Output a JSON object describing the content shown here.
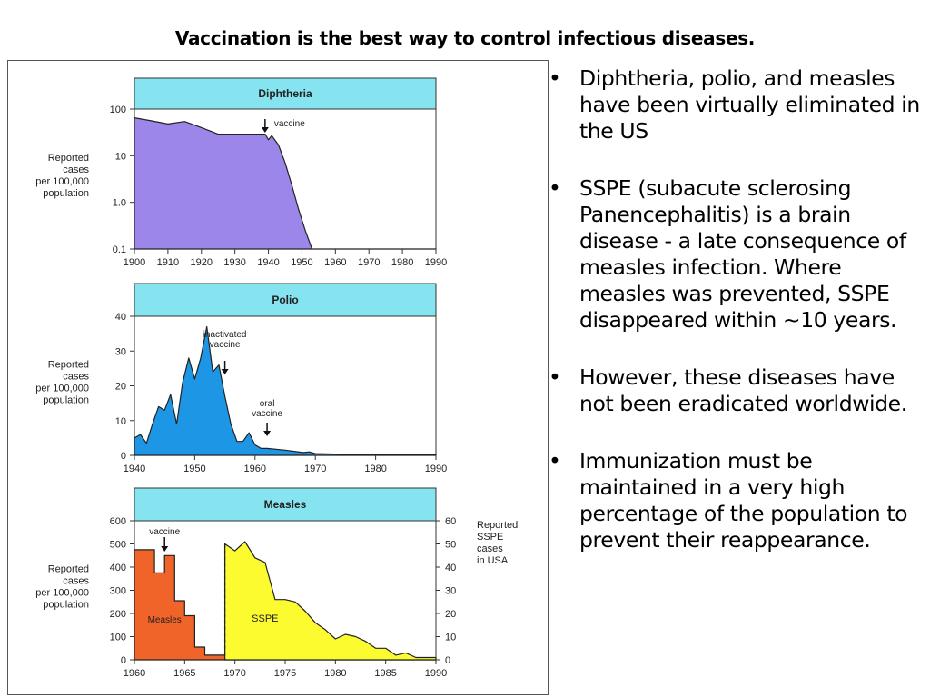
{
  "slide": {
    "title": "Vaccination is the best way to control infectious diseases.",
    "bullet_char": "•",
    "bullets": [
      "Diphtheria, polio, and measles have been virtually eliminated in the US",
      "SSPE (subacute sclerosing Panencephalitis) is a brain disease - a late  consequence of measles infection. Where measles was prevented, SSPE disappeared within ~10 years.",
      "However, these diseases have not been eradicated worldwide.",
      "Immunization must be maintained in a very high percentage of the population to prevent their reappearance."
    ]
  },
  "colors": {
    "header_fill": "#86e4f1",
    "diphtheria_fill": "#9d86ea",
    "polio_fill": "#1e96e6",
    "measles_fill": "#f0642a",
    "sspe_fill": "#fbfb30"
  },
  "chart_data": [
    {
      "type": "area",
      "title": "Diphtheria",
      "ylabel": [
        "Reported",
        "cases",
        "per 100,000",
        "population"
      ],
      "yscale": "log",
      "ylim": [
        0.1,
        100
      ],
      "yticks": [
        100,
        10,
        1.0,
        0.1
      ],
      "ytick_labels": [
        "100",
        "10",
        "1.0",
        "0.1"
      ],
      "xlim": [
        1900,
        1990
      ],
      "xticks": [
        1900,
        1910,
        1920,
        1930,
        1940,
        1950,
        1960,
        1970,
        1980,
        1990
      ],
      "series": [
        {
          "x": [
            1900,
            1905,
            1910,
            1915,
            1920,
            1925,
            1930,
            1935,
            1939,
            1940,
            1941,
            1943,
            1945,
            1947,
            1949,
            1951,
            1953,
            1960,
            1970,
            1980,
            1990
          ],
          "y": [
            65,
            56,
            48,
            54,
            40,
            29,
            29,
            29,
            29,
            22,
            27,
            17,
            7,
            2.3,
            0.7,
            0.25,
            0.1,
            0.1,
            0.1,
            0.1,
            0.1
          ]
        }
      ],
      "annotations": [
        {
          "text": "vaccine",
          "x": 1939,
          "arrow": true
        }
      ]
    },
    {
      "type": "area",
      "title": "Polio",
      "ylabel": [
        "Reported",
        "cases",
        "per 100,000",
        "population"
      ],
      "ylim": [
        0,
        40
      ],
      "yticks": [
        40,
        30,
        20,
        10,
        0
      ],
      "xlim": [
        1940,
        1990
      ],
      "xticks": [
        1940,
        1950,
        1960,
        1970,
        1980,
        1990
      ],
      "series": [
        {
          "x": [
            1940,
            1941,
            1942,
            1943,
            1944,
            1945,
            1946,
            1947,
            1948,
            1949,
            1950,
            1951,
            1952,
            1953,
            1954,
            1955,
            1956,
            1957,
            1958,
            1959,
            1960,
            1961,
            1962,
            1965,
            1968,
            1969,
            1970,
            1975,
            1980,
            1990
          ],
          "y": [
            5,
            6,
            3.5,
            9,
            14,
            13,
            17.5,
            9,
            21,
            28,
            22,
            28,
            37,
            24,
            26,
            17,
            9,
            4,
            4,
            6.5,
            3,
            2,
            2,
            1.5,
            0.8,
            1,
            0.5,
            0.3,
            0.3,
            0.3
          ]
        }
      ],
      "annotations": [
        {
          "text": [
            "inactivated",
            "vaccine"
          ],
          "x": 1955,
          "arrow": true
        },
        {
          "text": [
            "oral",
            "vaccine"
          ],
          "x": 1962,
          "arrow": true
        }
      ]
    },
    {
      "type": "area",
      "title": "Measles",
      "ylabel": [
        "Reported",
        "cases",
        "per 100,000",
        "population"
      ],
      "y2label": [
        "Reported",
        "SSPE",
        "cases",
        "in  USA"
      ],
      "ylim": [
        0,
        600
      ],
      "y2lim": [
        0,
        60
      ],
      "yticks": [
        600,
        500,
        400,
        300,
        200,
        100,
        0
      ],
      "y2ticks": [
        60,
        50,
        40,
        30,
        20,
        10,
        0
      ],
      "xlim": [
        1960,
        1990
      ],
      "xticks": [
        1960,
        1965,
        1970,
        1975,
        1980,
        1985,
        1990
      ],
      "series": [
        {
          "name": "Measles",
          "axis": "left",
          "step": true,
          "x": [
            1960,
            1961,
            1962,
            1963,
            1964,
            1965,
            1966,
            1967,
            1968,
            1969,
            1970,
            1971,
            1972,
            1973,
            1974,
            1975,
            1976,
            1977,
            1978,
            1979,
            1980,
            1981,
            1982,
            1990
          ],
          "y": [
            475,
            475,
            375,
            450,
            255,
            190,
            55,
            20,
            20,
            35,
            75,
            40,
            20,
            15,
            15,
            35,
            40,
            60,
            25,
            15,
            8,
            3,
            0,
            0
          ]
        },
        {
          "name": "SSPE",
          "axis": "right",
          "x": [
            1969,
            1970,
            1971,
            1972,
            1973,
            1974,
            1975,
            1976,
            1977,
            1978,
            1979,
            1980,
            1981,
            1982,
            1983,
            1984,
            1985,
            1986,
            1987,
            1988,
            1989,
            1990
          ],
          "y": [
            50,
            47,
            51,
            44,
            42,
            26,
            26,
            25,
            21,
            16,
            13,
            9,
            11,
            10,
            8,
            5,
            5,
            2,
            3,
            1,
            1,
            1
          ]
        }
      ],
      "annotations": [
        {
          "text": "vaccine",
          "x": 1963,
          "arrow": true
        }
      ]
    }
  ]
}
